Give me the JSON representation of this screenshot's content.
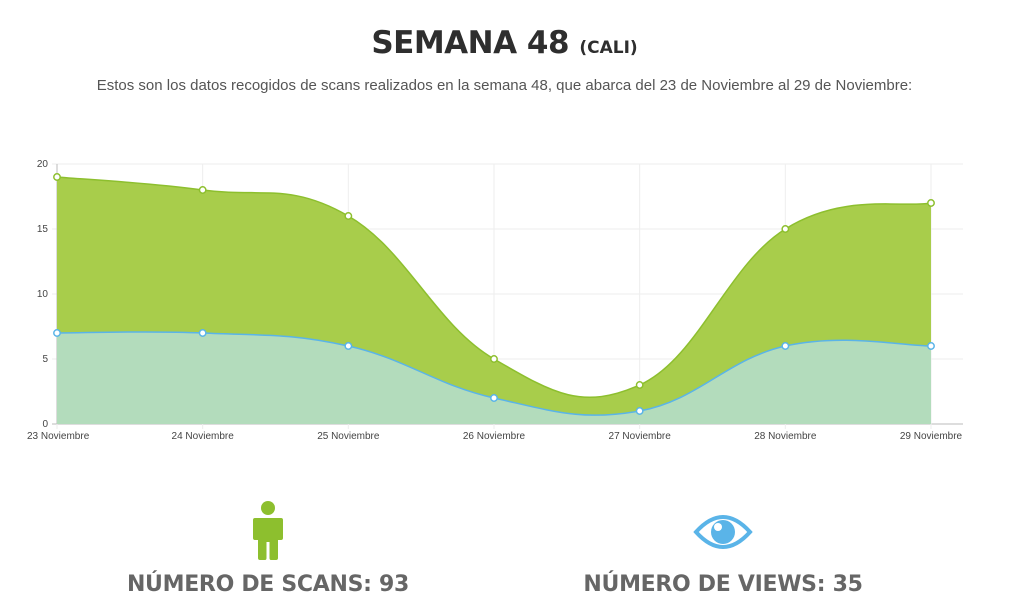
{
  "header": {
    "title": "SEMANA 48",
    "title_suffix": "(CALI)",
    "intro": "Estos son los datos recogidos de scans realizados en la semana 48, que abarca del 23 de Noviembre al 29 de Noviembre:"
  },
  "chart_data": {
    "type": "area",
    "title": "",
    "xlabel": "",
    "ylabel": "",
    "categories": [
      "23 Noviembre",
      "24 Noviembre",
      "25 Noviembre",
      "26 Noviembre",
      "27 Noviembre",
      "28 Noviembre",
      "29 Noviembre"
    ],
    "series": [
      {
        "color": "#a8cd4b",
        "stroke": "#8dbf2e",
        "values": [
          19,
          18,
          16,
          5,
          3,
          15,
          17
        ]
      },
      {
        "color": "#b3dcbc",
        "stroke": "#5ab4e8",
        "values": [
          7,
          7,
          6,
          2,
          1,
          6,
          6
        ]
      }
    ],
    "ylim": [
      0,
      20
    ],
    "yticks": [
      0,
      5,
      10,
      15,
      20
    ],
    "grid": true,
    "legend": "none"
  },
  "stats": {
    "scans_label": "NÚMERO DE SCANS: 93",
    "views_label": "NÚMERO DE VIEWS: 35"
  },
  "icons": {
    "scans": "person-icon",
    "views": "eye-icon"
  },
  "colors": {
    "green": "#8dbf2e",
    "blue": "#5ab4e8"
  }
}
